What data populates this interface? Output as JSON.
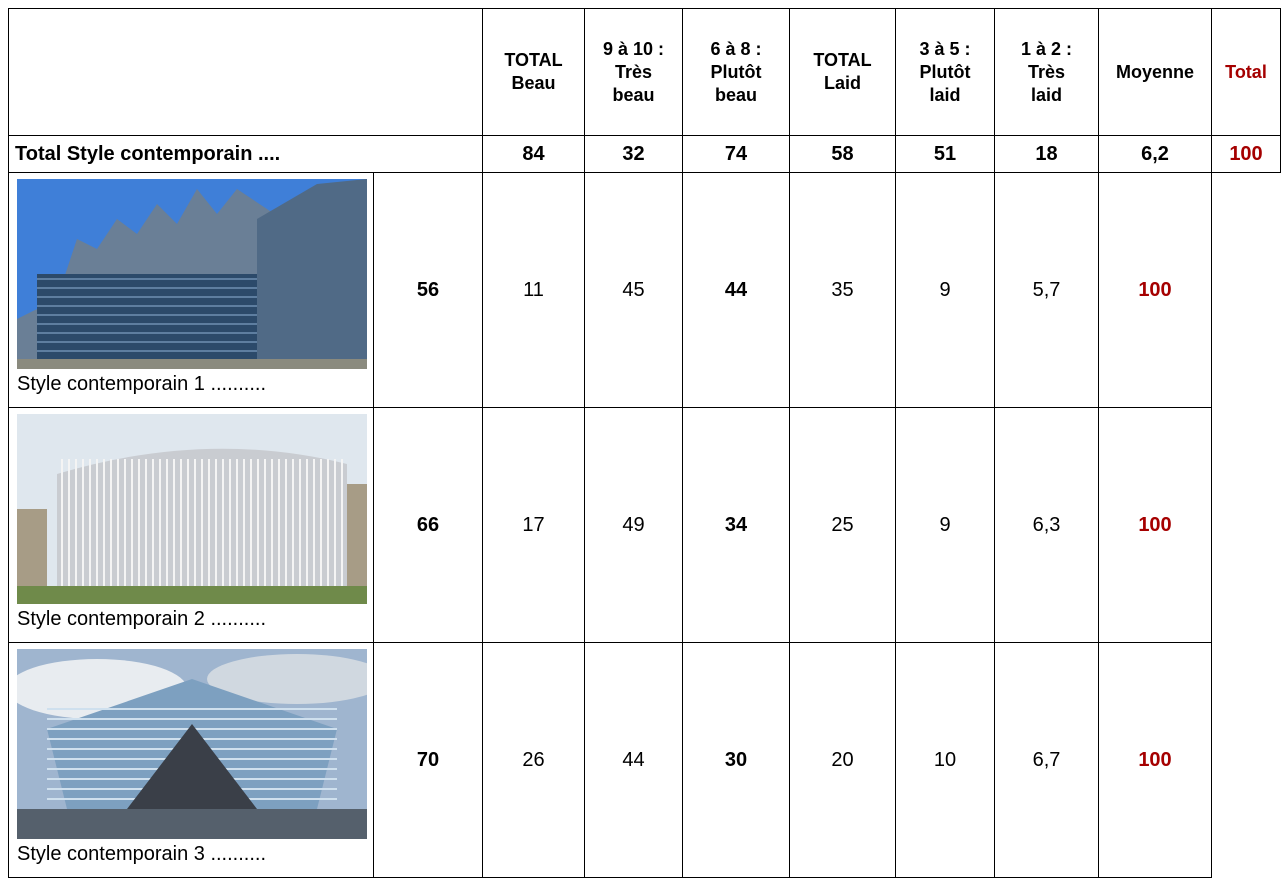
{
  "table": {
    "header": [
      [],
      [
        "TOTAL",
        "Beau"
      ],
      [
        "9 à 10 :",
        "Très",
        "beau"
      ],
      [
        "6 à 8 :",
        "Plutôt",
        "beau"
      ],
      [
        "TOTAL",
        "Laid"
      ],
      [
        "3 à 5 :",
        "Plutôt",
        "laid"
      ],
      [
        "1 à 2 :",
        "Très",
        "laid"
      ],
      [
        "Moyenne"
      ],
      [
        "Total"
      ]
    ],
    "rows": [
      [
        "Total Style contemporain ....",
        "84",
        "32",
        "74",
        "58",
        "51",
        "18",
        "6,2",
        "100"
      ],
      [
        "Style contemporain 1 ..........",
        "56",
        "11",
        "45",
        "44",
        "35",
        "9",
        "5,7",
        "100"
      ],
      [
        "Style contemporain 2 ..........",
        "66",
        "17",
        "49",
        "34",
        "25",
        "9",
        "6,3",
        "100"
      ],
      [
        "Style contemporain 3 ..........",
        "70",
        "26",
        "44",
        "30",
        "20",
        "10",
        "6,7",
        "100"
      ]
    ]
  }
}
